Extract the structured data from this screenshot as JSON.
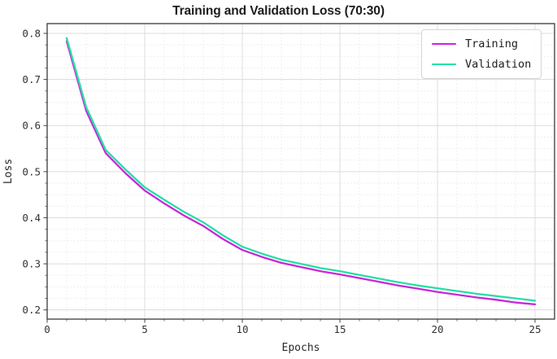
{
  "chart_data": {
    "type": "line",
    "title": "Training and Validation Loss (70:30)",
    "xlabel": "Epochs",
    "ylabel": "Loss",
    "x": [
      1,
      2,
      3,
      4,
      5,
      6,
      7,
      8,
      9,
      10,
      11,
      12,
      13,
      14,
      15,
      16,
      17,
      18,
      19,
      20,
      21,
      22,
      23,
      24,
      25
    ],
    "series": [
      {
        "name": "Training",
        "color": "#c827db",
        "values": [
          0.783,
          0.632,
          0.54,
          0.497,
          0.459,
          0.431,
          0.405,
          0.382,
          0.354,
          0.33,
          0.315,
          0.302,
          0.293,
          0.284,
          0.277,
          0.269,
          0.261,
          0.253,
          0.246,
          0.239,
          0.233,
          0.227,
          0.222,
          0.216,
          0.212
        ]
      },
      {
        "name": "Validation",
        "color": "#26dfa6",
        "values": [
          0.79,
          0.64,
          0.547,
          0.505,
          0.466,
          0.439,
          0.413,
          0.39,
          0.362,
          0.337,
          0.322,
          0.309,
          0.3,
          0.291,
          0.284,
          0.276,
          0.268,
          0.26,
          0.253,
          0.247,
          0.241,
          0.235,
          0.23,
          0.225,
          0.22
        ]
      }
    ],
    "xlim": [
      0,
      26
    ],
    "ylim": [
      0.18,
      0.8212
    ],
    "x_ticks": [
      0,
      5,
      10,
      15,
      20,
      25
    ],
    "x_tick_labels": [
      "0",
      "5",
      "10",
      "15",
      "20",
      "25"
    ],
    "y_ticks": [
      0.2,
      0.3,
      0.4,
      0.5,
      0.6,
      0.7,
      0.8
    ],
    "y_tick_labels": [
      "0.2",
      "0.3",
      "0.4",
      "0.5",
      "0.6",
      "0.7",
      "0.8"
    ],
    "x_minor_step": 1,
    "y_minor_step": 0.025,
    "grid": "major solid + minor dotted",
    "legend_position": "upper right",
    "colors": {
      "background": "#ffffff",
      "grid_major": "#dcdcdc",
      "grid_minor": "#e7e7e7",
      "spine": "#3a3a3a",
      "tick_label": "#333333",
      "title": "#1d1d1d"
    }
  }
}
